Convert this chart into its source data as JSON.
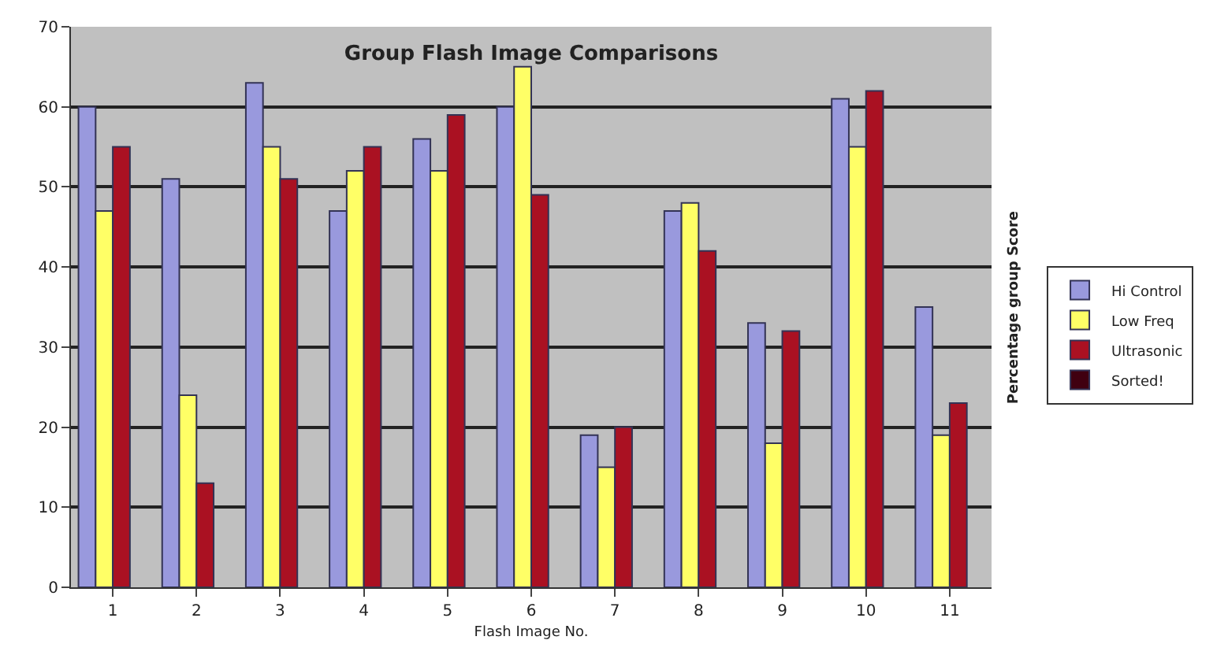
{
  "chart_data": {
    "type": "bar",
    "title": "Group Flash Image Comparisons",
    "xlabel": "Flash Image No.",
    "ylabel": "Percentage group Score",
    "categories": [
      "1",
      "2",
      "3",
      "4",
      "5",
      "6",
      "7",
      "8",
      "9",
      "10",
      "11"
    ],
    "series": [
      {
        "name": "Hi Control",
        "color": "#9999dd",
        "values": [
          60,
          51,
          63,
          47,
          56,
          60,
          19,
          47,
          33,
          61,
          35
        ]
      },
      {
        "name": "Low Freq",
        "color": "#ffff66",
        "values": [
          47,
          24,
          55,
          52,
          52,
          65,
          15,
          48,
          18,
          55,
          19
        ]
      },
      {
        "name": "Ultrasonic",
        "color": "#aa1122",
        "values": [
          55,
          13,
          51,
          55,
          59,
          49,
          20,
          42,
          32,
          62,
          23
        ]
      },
      {
        "name": "Sorted!",
        "color": "#400010",
        "values": [
          null,
          null,
          null,
          null,
          null,
          null,
          null,
          null,
          null,
          null,
          null
        ]
      }
    ],
    "ylim": [
      0,
      70
    ],
    "yticks": [
      0,
      10,
      20,
      30,
      40,
      50,
      60,
      70
    ],
    "grid": "y",
    "legend": "right"
  }
}
